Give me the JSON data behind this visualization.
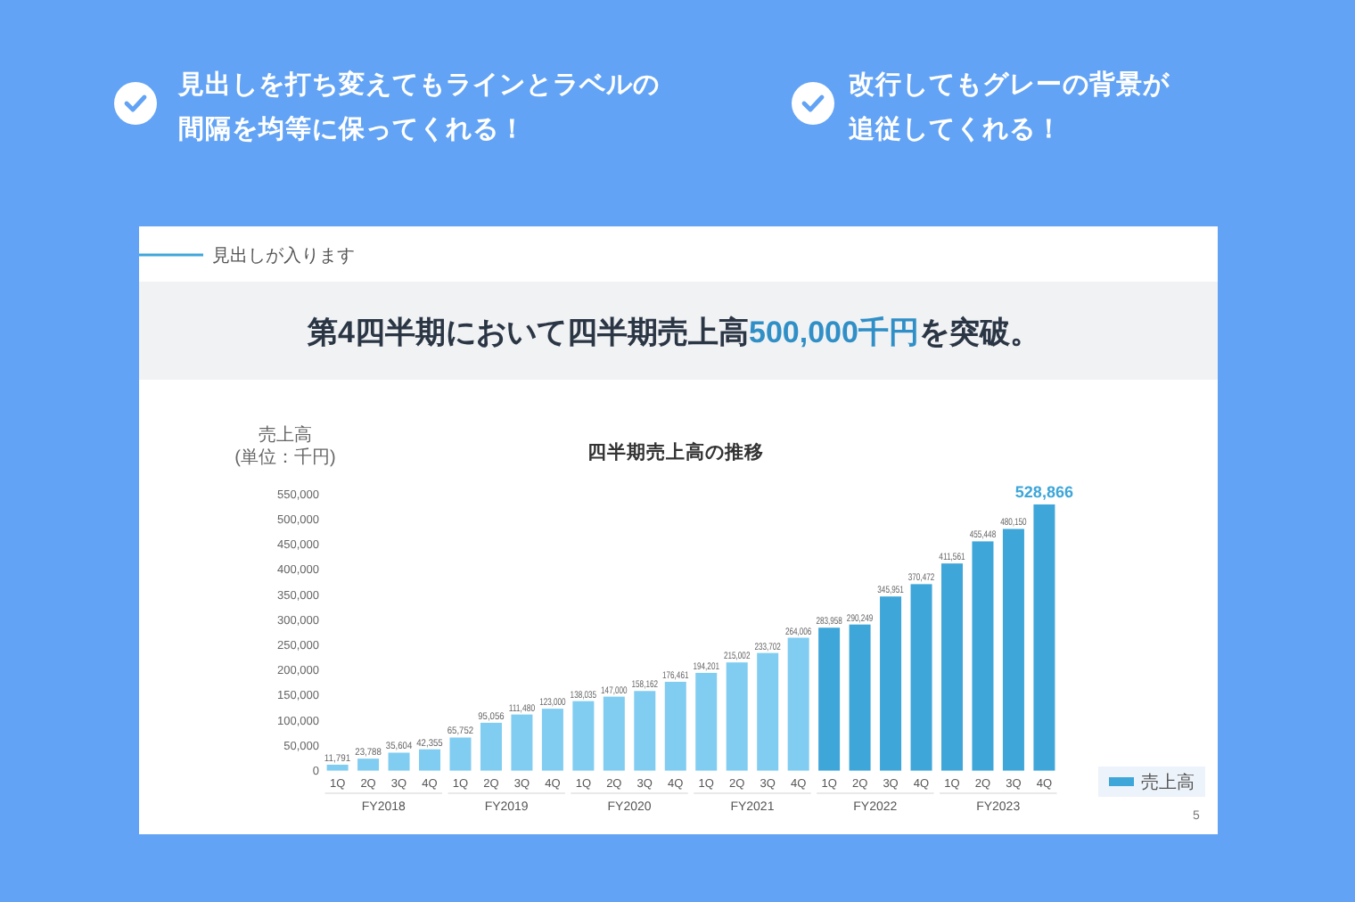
{
  "chart_data": {
    "type": "bar",
    "title": "四半期売上高の推移",
    "ylabel": "売上高\n(単位：千円)",
    "categories": [
      "1Q",
      "2Q",
      "3Q",
      "4Q",
      "1Q",
      "2Q",
      "3Q",
      "4Q",
      "1Q",
      "2Q",
      "3Q",
      "4Q",
      "1Q",
      "2Q",
      "3Q",
      "4Q",
      "1Q",
      "2Q",
      "3Q",
      "4Q",
      "1Q",
      "2Q",
      "3Q",
      "4Q"
    ],
    "series": [
      {
        "name": "売上高",
        "color": "#3ea6d9",
        "colors": [
          "#80cdf1",
          "#80cdf1",
          "#80cdf1",
          "#80cdf1",
          "#80cdf1",
          "#80cdf1",
          "#80cdf1",
          "#80cdf1",
          "#80cdf1",
          "#80cdf1",
          "#80cdf1",
          "#80cdf1",
          "#80cdf1",
          "#80cdf1",
          "#80cdf1",
          "#80cdf1",
          "#3ea6d9",
          "#3ea6d9",
          "#3ea6d9",
          "#3ea6d9",
          "#3ea6d9",
          "#3ea6d9",
          "#3ea6d9",
          "#3ea6d9"
        ],
        "values": [
          11791,
          23788,
          35604,
          42355,
          65752,
          95056,
          111480,
          123000,
          138035,
          147000,
          158162,
          176461,
          194201,
          215002,
          233702,
          264006,
          283958,
          290249,
          345951,
          370472,
          411561,
          455448,
          480150,
          528866
        ],
        "value_labels": [
          "11,791",
          "23,788",
          "35,604",
          "42,355",
          "65,752",
          "95,056",
          "111,480",
          "123,000",
          "138,035",
          "147,000",
          "158,162",
          "176,461",
          "194,201",
          "215,002",
          "233,702",
          "264,006",
          "283,958",
          "290,249",
          "345,951",
          "370,472",
          "411,561",
          "455,448",
          "480,150",
          "528,866"
        ]
      }
    ],
    "ylim": [
      0,
      550000
    ],
    "yticks": [
      0,
      {
        "value": 50000,
        "label": "50,000"
      },
      {
        "value": 100000,
        "label": "100,000"
      },
      {
        "value": 150000,
        "label": "150,000"
      },
      {
        "value": 200000,
        "label": "200,000"
      },
      {
        "value": 250000,
        "label": "250,000"
      },
      {
        "value": 300000,
        "label": "300,000"
      },
      {
        "value": 350000,
        "label": "350,000"
      },
      {
        "value": 400000,
        "label": "400,000"
      },
      {
        "value": 450000,
        "label": "450,000"
      },
      {
        "value": 500000,
        "label": "500,000"
      },
      {
        "value": 550000,
        "label": "550,000"
      }
    ],
    "legend": "bottom right",
    "annotations": [
      "見出しを打ち変えてもラインとラベルの間隔を均等に保ってくれる！",
      "改行してもグレーの背景が追従してくれる！",
      "見出しが入ります",
      "第4四半期において四半期売上高",
      "500,000千円",
      "を突破。",
      "FY2018",
      "FY2019",
      "FY2020",
      "FY2021",
      "FY2022",
      "FY2023",
      "5"
    ]
  }
}
